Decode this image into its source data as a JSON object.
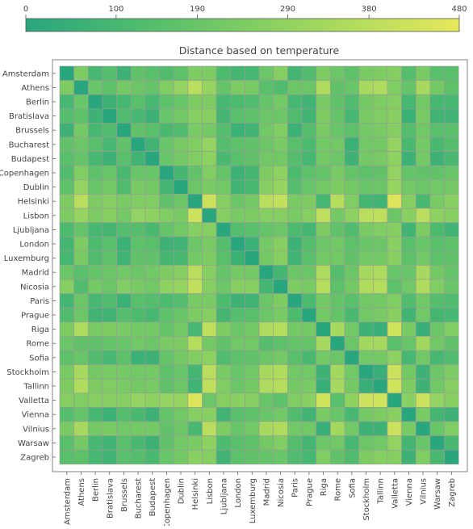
{
  "chart_data": {
    "type": "heatmap",
    "title": "Distance based on temperature",
    "colorbar": {
      "min": 0,
      "max": 480,
      "ticks": [
        0,
        100,
        190,
        290,
        380,
        480
      ],
      "colors": [
        "#2aa67e",
        "#4dbb6e",
        "#7ccc63",
        "#b0dc5d",
        "#e6e85b"
      ]
    },
    "cities": [
      "Amsterdam",
      "Athens",
      "Berlin",
      "Bratislava",
      "Brussels",
      "Bucharest",
      "Budapest",
      "Copenhagen",
      "Dublin",
      "Helsinki",
      "Lisbon",
      "Ljubljana",
      "London",
      "Luxemburg",
      "Madrid",
      "Nicosia",
      "Paris",
      "Prague",
      "Riga",
      "Rome",
      "Sofia",
      "Stockholm",
      "Tallinn",
      "Valletta",
      "Vienna",
      "Vilnius",
      "Warsaw",
      "Zagreb"
    ],
    "values": [
      [
        0,
        240,
        100,
        140,
        70,
        170,
        150,
        130,
        160,
        240,
        240,
        120,
        90,
        100,
        200,
        260,
        90,
        130,
        240,
        200,
        160,
        230,
        240,
        260,
        140,
        230,
        150,
        150
      ],
      [
        240,
        0,
        190,
        160,
        220,
        200,
        180,
        250,
        290,
        380,
        300,
        180,
        240,
        230,
        150,
        130,
        200,
        200,
        350,
        170,
        190,
        340,
        360,
        250,
        180,
        340,
        220,
        160
      ],
      [
        100,
        190,
        0,
        70,
        100,
        150,
        100,
        160,
        190,
        240,
        240,
        100,
        120,
        130,
        180,
        220,
        100,
        80,
        230,
        170,
        130,
        220,
        240,
        260,
        100,
        220,
        100,
        100
      ],
      [
        140,
        160,
        70,
        0,
        130,
        100,
        70,
        190,
        220,
        260,
        270,
        90,
        150,
        160,
        200,
        200,
        130,
        80,
        240,
        180,
        100,
        230,
        250,
        270,
        60,
        230,
        80,
        80
      ],
      [
        70,
        220,
        100,
        130,
        0,
        170,
        150,
        110,
        130,
        230,
        220,
        140,
        60,
        80,
        210,
        250,
        60,
        140,
        230,
        190,
        160,
        220,
        230,
        260,
        140,
        210,
        150,
        150
      ],
      [
        170,
        200,
        150,
        100,
        170,
        0,
        80,
        190,
        230,
        250,
        290,
        140,
        160,
        170,
        200,
        230,
        150,
        120,
        210,
        210,
        60,
        210,
        220,
        290,
        110,
        220,
        110,
        140
      ],
      [
        150,
        180,
        100,
        70,
        150,
        80,
        0,
        190,
        220,
        250,
        280,
        110,
        150,
        170,
        210,
        210,
        140,
        100,
        220,
        200,
        70,
        220,
        230,
        280,
        70,
        220,
        70,
        110
      ],
      [
        130,
        250,
        160,
        190,
        110,
        190,
        190,
        0,
        90,
        170,
        250,
        180,
        70,
        90,
        240,
        280,
        120,
        160,
        180,
        230,
        180,
        160,
        170,
        290,
        180,
        170,
        170,
        190
      ],
      [
        160,
        290,
        190,
        220,
        130,
        230,
        220,
        90,
        0,
        200,
        230,
        210,
        80,
        110,
        260,
        300,
        140,
        190,
        210,
        240,
        220,
        190,
        200,
        300,
        210,
        200,
        210,
        220
      ],
      [
        240,
        380,
        240,
        260,
        230,
        250,
        250,
        170,
        200,
        0,
        420,
        260,
        200,
        220,
        380,
        400,
        230,
        240,
        100,
        370,
        250,
        90,
        80,
        460,
        260,
        110,
        230,
        270
      ],
      [
        240,
        300,
        240,
        270,
        220,
        290,
        280,
        250,
        230,
        420,
        0,
        260,
        230,
        240,
        260,
        260,
        230,
        260,
        390,
        220,
        280,
        380,
        390,
        200,
        270,
        380,
        280,
        260
      ],
      [
        120,
        180,
        100,
        90,
        140,
        140,
        110,
        180,
        210,
        260,
        260,
        0,
        140,
        150,
        180,
        200,
        120,
        90,
        240,
        170,
        130,
        230,
        250,
        260,
        80,
        240,
        120,
        80
      ],
      [
        90,
        240,
        120,
        150,
        60,
        160,
        150,
        70,
        80,
        200,
        230,
        140,
        0,
        60,
        220,
        260,
        70,
        140,
        200,
        210,
        160,
        190,
        200,
        270,
        150,
        190,
        150,
        160
      ],
      [
        100,
        230,
        130,
        160,
        80,
        170,
        170,
        90,
        110,
        220,
        240,
        150,
        60,
        0,
        220,
        260,
        80,
        150,
        220,
        210,
        170,
        210,
        220,
        270,
        160,
        210,
        160,
        170
      ],
      [
        200,
        150,
        180,
        200,
        210,
        200,
        210,
        240,
        260,
        380,
        260,
        180,
        220,
        220,
        0,
        90,
        200,
        200,
        350,
        140,
        200,
        340,
        350,
        190,
        190,
        340,
        220,
        180
      ],
      [
        260,
        130,
        220,
        200,
        250,
        230,
        210,
        280,
        300,
        400,
        260,
        200,
        260,
        260,
        90,
        0,
        240,
        230,
        370,
        160,
        220,
        360,
        370,
        160,
        210,
        360,
        250,
        190
      ],
      [
        90,
        200,
        100,
        130,
        60,
        150,
        140,
        120,
        140,
        230,
        230,
        120,
        70,
        80,
        200,
        240,
        0,
        120,
        220,
        180,
        150,
        210,
        220,
        250,
        130,
        210,
        140,
        130
      ],
      [
        130,
        200,
        80,
        80,
        140,
        120,
        100,
        160,
        190,
        240,
        260,
        90,
        140,
        150,
        200,
        230,
        120,
        0,
        220,
        180,
        110,
        210,
        230,
        270,
        80,
        210,
        90,
        100
      ],
      [
        240,
        350,
        230,
        240,
        230,
        210,
        220,
        180,
        210,
        100,
        390,
        240,
        200,
        220,
        350,
        370,
        220,
        220,
        0,
        340,
        210,
        70,
        50,
        430,
        230,
        50,
        200,
        250
      ],
      [
        200,
        170,
        170,
        180,
        190,
        210,
        200,
        230,
        240,
        370,
        220,
        170,
        210,
        210,
        140,
        160,
        180,
        180,
        340,
        0,
        200,
        330,
        340,
        150,
        190,
        330,
        210,
        170
      ],
      [
        160,
        190,
        130,
        100,
        160,
        60,
        70,
        180,
        220,
        250,
        280,
        130,
        160,
        170,
        200,
        220,
        150,
        110,
        210,
        200,
        0,
        210,
        220,
        280,
        100,
        210,
        100,
        130
      ],
      [
        230,
        340,
        220,
        230,
        220,
        210,
        220,
        160,
        190,
        90,
        380,
        230,
        190,
        210,
        340,
        360,
        210,
        210,
        70,
        330,
        210,
        0,
        50,
        420,
        220,
        70,
        200,
        240
      ],
      [
        240,
        360,
        240,
        250,
        230,
        220,
        230,
        170,
        200,
        80,
        390,
        250,
        200,
        220,
        350,
        370,
        220,
        230,
        50,
        340,
        220,
        50,
        0,
        430,
        240,
        70,
        210,
        260
      ],
      [
        260,
        250,
        260,
        270,
        260,
        290,
        280,
        290,
        300,
        460,
        200,
        260,
        270,
        270,
        190,
        160,
        250,
        270,
        430,
        150,
        280,
        420,
        430,
        0,
        270,
        420,
        290,
        260
      ],
      [
        140,
        180,
        100,
        60,
        140,
        110,
        70,
        180,
        210,
        260,
        270,
        80,
        150,
        160,
        190,
        210,
        130,
        80,
        230,
        190,
        100,
        220,
        240,
        270,
        0,
        230,
        90,
        70
      ],
      [
        230,
        340,
        220,
        230,
        210,
        220,
        220,
        170,
        200,
        110,
        380,
        240,
        190,
        210,
        340,
        360,
        210,
        210,
        50,
        330,
        210,
        70,
        70,
        420,
        230,
        0,
        190,
        250
      ],
      [
        150,
        220,
        100,
        80,
        150,
        110,
        70,
        170,
        210,
        230,
        280,
        120,
        150,
        160,
        220,
        250,
        140,
        90,
        200,
        210,
        100,
        200,
        210,
        290,
        90,
        190,
        0,
        110
      ],
      [
        150,
        160,
        100,
        80,
        150,
        140,
        110,
        190,
        220,
        270,
        260,
        80,
        160,
        170,
        180,
        190,
        130,
        100,
        250,
        170,
        130,
        240,
        260,
        260,
        70,
        250,
        110,
        0
      ]
    ]
  }
}
